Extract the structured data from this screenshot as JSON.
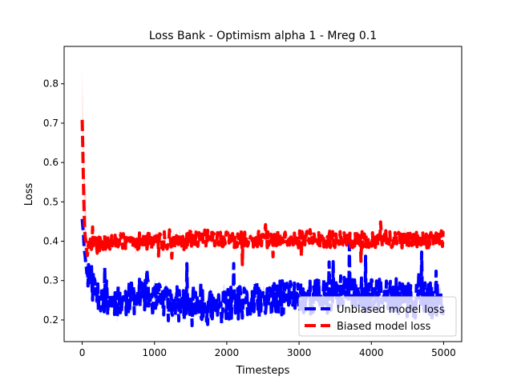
{
  "chart_data": {
    "type": "line",
    "title": "Loss Bank - Optimism alpha 1 - Mreg 0.1",
    "xlabel": "Timesteps",
    "ylabel": "Loss",
    "xlim": [
      -250,
      5250
    ],
    "ylim": [
      0.145,
      0.895
    ],
    "xticks": [
      0,
      1000,
      2000,
      3000,
      4000,
      5000
    ],
    "xtick_labels": [
      "0",
      "1000",
      "2000",
      "3000",
      "4000",
      "5000"
    ],
    "yticks": [
      0.2,
      0.3,
      0.4,
      0.5,
      0.6,
      0.7,
      0.8
    ],
    "ytick_labels": [
      "0.2",
      "0.3",
      "0.4",
      "0.5",
      "0.6",
      "0.7",
      "0.8"
    ],
    "grid": false,
    "legend_position": "lower-right",
    "series": [
      {
        "name": "Unbiased model loss",
        "color": "#0000ff",
        "band_color": "#b0b0ff",
        "dash": "dashed",
        "x": [
          0,
          20,
          40,
          60,
          80,
          100,
          150,
          200,
          300,
          400,
          500,
          600,
          700,
          800,
          900,
          1000,
          1100,
          1200,
          1300,
          1400,
          1500,
          1600,
          1700,
          1800,
          1900,
          2000,
          2100,
          2200,
          2300,
          2400,
          2500,
          2600,
          2700,
          2800,
          2900,
          3000,
          3100,
          3200,
          3300,
          3400,
          3500,
          3600,
          3700,
          3800,
          3900,
          4000,
          4100,
          4200,
          4300,
          4400,
          4500,
          4600,
          4700,
          4800,
          4900,
          5000
        ],
        "y": [
          0.46,
          0.41,
          0.36,
          0.33,
          0.32,
          0.31,
          0.29,
          0.27,
          0.26,
          0.25,
          0.25,
          0.25,
          0.26,
          0.26,
          0.26,
          0.25,
          0.25,
          0.24,
          0.24,
          0.24,
          0.23,
          0.23,
          0.23,
          0.23,
          0.23,
          0.24,
          0.24,
          0.24,
          0.24,
          0.25,
          0.25,
          0.25,
          0.25,
          0.26,
          0.26,
          0.26,
          0.26,
          0.26,
          0.26,
          0.26,
          0.27,
          0.27,
          0.27,
          0.27,
          0.26,
          0.26,
          0.26,
          0.26,
          0.26,
          0.26,
          0.25,
          0.25,
          0.25,
          0.25,
          0.25,
          0.25
        ]
      },
      {
        "name": "Biased model loss",
        "color": "#ff0000",
        "band_color": "#ffb0b0",
        "dash": "dashed",
        "x": [
          0,
          10,
          20,
          30,
          40,
          50,
          60,
          80,
          100,
          150,
          200,
          300,
          400,
          500,
          600,
          700,
          800,
          900,
          1000,
          1100,
          1200,
          1300,
          1400,
          1500,
          1600,
          1700,
          1800,
          1900,
          2000,
          2100,
          2200,
          2300,
          2400,
          2500,
          2600,
          2700,
          2800,
          2900,
          3000,
          3100,
          3200,
          3300,
          3400,
          3500,
          3600,
          3700,
          3800,
          3900,
          4000,
          4100,
          4200,
          4300,
          4400,
          4500,
          4600,
          4700,
          4800,
          4900,
          5000
        ],
        "y": [
          0.71,
          0.62,
          0.52,
          0.45,
          0.41,
          0.4,
          0.39,
          0.38,
          0.385,
          0.39,
          0.39,
          0.395,
          0.395,
          0.4,
          0.4,
          0.4,
          0.4,
          0.4,
          0.4,
          0.4,
          0.4,
          0.4,
          0.4,
          0.405,
          0.405,
          0.41,
          0.405,
          0.405,
          0.405,
          0.405,
          0.405,
          0.405,
          0.405,
          0.405,
          0.405,
          0.405,
          0.41,
          0.405,
          0.405,
          0.405,
          0.41,
          0.405,
          0.405,
          0.405,
          0.405,
          0.405,
          0.405,
          0.405,
          0.405,
          0.405,
          0.405,
          0.405,
          0.405,
          0.405,
          0.405,
          0.405,
          0.405,
          0.405,
          0.405
        ]
      }
    ]
  }
}
